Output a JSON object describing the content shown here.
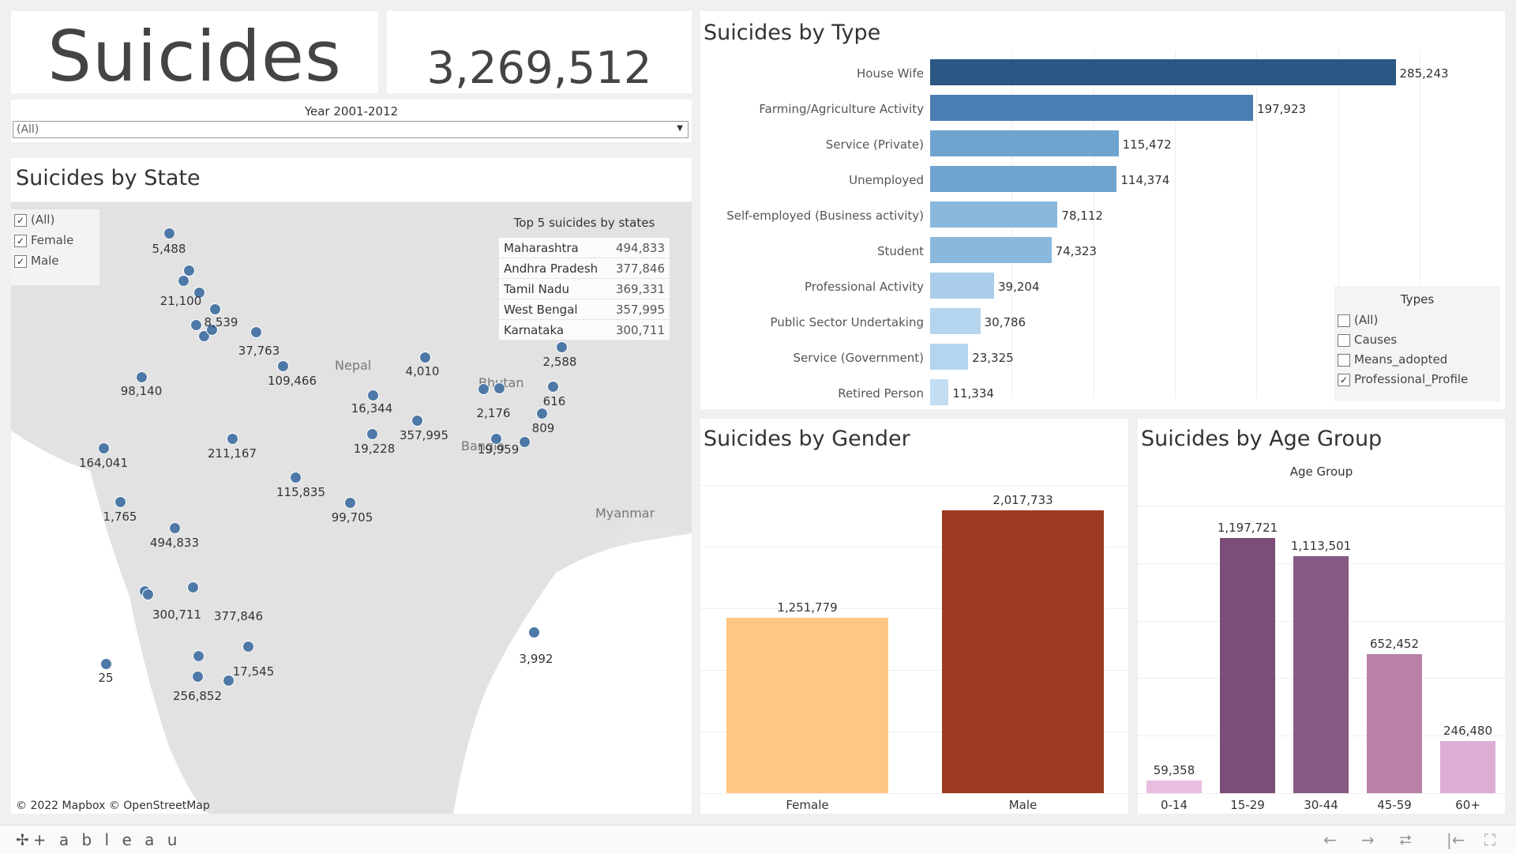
{
  "kpi": {
    "title": "Suicides",
    "total": "3,269,512"
  },
  "year_filter": {
    "label": "Year 2001-2012",
    "value": "(All)"
  },
  "state": {
    "title": "Suicides by State",
    "gender_filter": [
      {
        "label": "(All)",
        "checked": true
      },
      {
        "label": "Female",
        "checked": true
      },
      {
        "label": "Male",
        "checked": true
      }
    ],
    "top5": {
      "title": "Top 5 suicides by states",
      "rows": [
        {
          "state": "Maharashtra",
          "value": "494,833"
        },
        {
          "state": "Andhra Pradesh",
          "value": "377,846"
        },
        {
          "state": "Tamil Nadu",
          "value": "369,331"
        },
        {
          "state": "West Bengal",
          "value": "357,995"
        },
        {
          "state": "Karnataka",
          "value": "300,711"
        }
      ]
    },
    "map_labels": [
      "5,488",
      "21,100",
      "8,539",
      "37,763",
      "98,140",
      "109,466",
      "4,010",
      "2,588",
      "16,344",
      "616",
      "2,176",
      "809",
      "357,995",
      "19,228",
      "19,959",
      "164,041",
      "211,167",
      "115,835",
      "1,765",
      "99,705",
      "494,833",
      "300,711",
      "377,846",
      "3,992",
      "17,545",
      "25",
      "256,852"
    ],
    "geo_labels": [
      "Nepal",
      "Bhutan",
      "Bangla",
      "Myanmar"
    ],
    "attribution": "© 2022 Mapbox  © OpenStreetMap"
  },
  "type_chart": {
    "title": "Suicides by Type",
    "legend_title": "Types",
    "legend": [
      {
        "label": "(All)",
        "checked": false
      },
      {
        "label": "Causes",
        "checked": false
      },
      {
        "label": "Means_adopted",
        "checked": false
      },
      {
        "label": "Professional_Profile",
        "checked": true
      }
    ]
  },
  "gender_chart": {
    "title": "Suicides by Gender"
  },
  "age_chart": {
    "title": "Suicides by Age Group",
    "axis_title": "Age Group"
  },
  "chart_data": [
    {
      "type": "bar",
      "orientation": "horizontal",
      "title": "Suicides by Type",
      "categories": [
        "House Wife",
        "Farming/Agriculture Activity",
        "Service (Private)",
        "Unemployed",
        "Self-employed (Business activity)",
        "Student",
        "Professional Activity",
        "Public Sector Undertaking",
        "Service (Government)",
        "Retired Person"
      ],
      "values": [
        285243,
        197923,
        115472,
        114374,
        78112,
        74323,
        39204,
        30786,
        23325,
        11334
      ],
      "labels": [
        "285,243",
        "197,923",
        "115,472",
        "114,374",
        "78,112",
        "74,323",
        "39,204",
        "30,786",
        "23,325",
        "11,334"
      ],
      "colors": [
        "#2a5783",
        "#4a7eb3",
        "#6fa3d0",
        "#6fa3d0",
        "#8ab8dd",
        "#8ab8dd",
        "#a9cdea",
        "#b5d5ee",
        "#b5d5ee",
        "#c3ddf2"
      ],
      "xlim": [
        0,
        300000
      ]
    },
    {
      "type": "bar",
      "title": "Suicides by Gender",
      "categories": [
        "Female",
        "Male"
      ],
      "values": [
        1251779,
        2017733
      ],
      "labels": [
        "1,251,779",
        "2,017,733"
      ],
      "colors": [
        "#ffc685",
        "#9c3b21"
      ],
      "ylim": [
        0,
        2200000
      ]
    },
    {
      "type": "bar",
      "title": "Suicides by Age Group",
      "xlabel": "Age Group",
      "categories": [
        "0-14",
        "15-29",
        "30-44",
        "45-59",
        "60+"
      ],
      "values": [
        59358,
        1197721,
        1113501,
        652452,
        246480
      ],
      "labels": [
        "59,358",
        "1,197,721",
        "1,113,501",
        "652,452",
        "246,480"
      ],
      "colors": [
        "#e9bde0",
        "#7c4d79",
        "#875a85",
        "#b981a6",
        "#ddadd3"
      ],
      "ylim": [
        0,
        1350000
      ]
    }
  ],
  "footer": {
    "logo": "+ a b l e a u",
    "nav": [
      "←",
      "→",
      "⮂",
      "|←",
      "⛶"
    ]
  }
}
